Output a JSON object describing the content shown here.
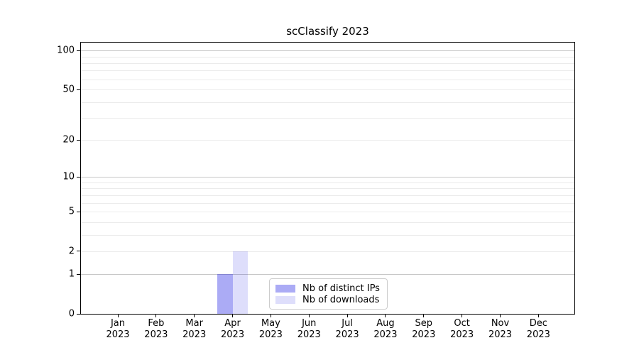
{
  "chart_data": {
    "type": "bar",
    "title": "scClassify 2023",
    "xlabel": "",
    "ylabel": "",
    "categories": [
      "Jan 2023",
      "Feb 2023",
      "Mar 2023",
      "Apr 2023",
      "May 2023",
      "Jun 2023",
      "Jul 2023",
      "Aug 2023",
      "Sep 2023",
      "Oct 2023",
      "Nov 2023",
      "Dec 2023"
    ],
    "series": [
      {
        "name": "Nb of distinct IPs",
        "color": "#0000E054",
        "values": [
          0,
          0,
          0,
          1,
          0,
          0,
          0,
          0,
          0,
          0,
          0,
          0
        ]
      },
      {
        "name": "Nb of downloads",
        "color": "#0000E021",
        "values": [
          0,
          0,
          0,
          2,
          0,
          0,
          0,
          0,
          0,
          0,
          0,
          0
        ]
      }
    ],
    "yscale": "log1p",
    "ylim": [
      0,
      115
    ],
    "yticks": [
      100,
      50,
      20,
      10,
      5,
      2,
      1,
      0
    ],
    "grid": {
      "major_color": "#c6c6c6",
      "minor_color": "#ebebeb",
      "majors": [
        1,
        10,
        100
      ],
      "minors": [
        2,
        3,
        4,
        5,
        6,
        7,
        8,
        9,
        20,
        30,
        40,
        50,
        60,
        70,
        80,
        90
      ]
    },
    "legend_position": "lower center",
    "spine_color": "#000000",
    "background_color": "#ffffff"
  }
}
